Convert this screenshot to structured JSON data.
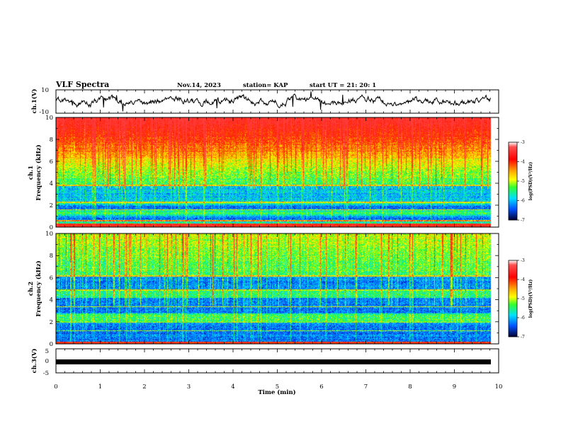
{
  "header": {
    "title": "VLF Spectra",
    "date": "Nov.14, 2023",
    "station": "station= KAP",
    "start": "start  UT  =   21: 20: 1"
  },
  "chart_data": [
    {
      "type": "line",
      "name": "ch1-waveform",
      "ylabel": "ch.1(V)",
      "ylim": [
        -10,
        10
      ],
      "ytick_labels": [
        "10",
        "-10"
      ],
      "xlim": [
        0,
        10
      ],
      "color": "#000000"
    },
    {
      "type": "heatmap",
      "name": "ch1-spectrogram",
      "ylabel_line1": "ch.1",
      "ylabel_line2": "Frequency  (kHz)",
      "ylim": [
        0,
        10
      ],
      "yticks": [
        "0",
        "2",
        "4",
        "6",
        "8",
        "10"
      ],
      "xlim": [
        0,
        10
      ],
      "colorbar": {
        "label": "log(PSD)(V²/Hz)",
        "range": [
          -7,
          -3
        ],
        "ticks": [
          "-3",
          "-4",
          "-5",
          "-6",
          "-7"
        ]
      }
    },
    {
      "type": "heatmap",
      "name": "ch2-spectrogram",
      "ylabel_line1": "ch.2",
      "ylabel_line2": "Frequency  (kHz)",
      "ylim": [
        0,
        10
      ],
      "yticks": [
        "0",
        "2",
        "4",
        "6",
        "8",
        "10"
      ],
      "xlim": [
        0,
        10
      ],
      "colorbar": {
        "label": "log(PSD)(V²/Hz)",
        "range": [
          -7,
          -3
        ],
        "ticks": [
          "-3",
          "-4",
          "-5",
          "-6",
          "-7"
        ]
      }
    },
    {
      "type": "line",
      "name": "ch3-waveform",
      "ylabel": "ch.3(V)",
      "ylim": [
        -5,
        5
      ],
      "ytick_labels": [
        "5",
        "0",
        "-5"
      ],
      "xlim": [
        0,
        10
      ],
      "color": "#000000"
    }
  ],
  "xaxis": {
    "label": "Time  (min)",
    "ticks": [
      "0",
      "1",
      "2",
      "3",
      "4",
      "5",
      "6",
      "7",
      "8",
      "9",
      "10"
    ]
  }
}
